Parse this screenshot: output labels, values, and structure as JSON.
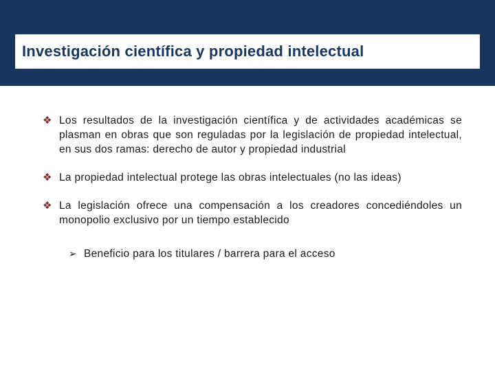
{
  "colors": {
    "band": "#17375e",
    "title": "#17375e",
    "bullet_glyph": "#7d2a2a",
    "text": "#1a1a1a",
    "background": "#ffffff"
  },
  "typography": {
    "title_fontsize": 22,
    "body_fontsize": 15.5,
    "line_height": 21,
    "font_family": "Verdana"
  },
  "title": "Investigación científica y propiedad intelectual",
  "bullets": [
    {
      "glyph": "❖",
      "text": "Los resultados de la investigación científica y de actividades académicas se plasman en obras que son reguladas por la legislación de propiedad intelectual, en sus dos ramas: derecho de autor y propiedad industrial"
    },
    {
      "glyph": "❖",
      "text": "La propiedad intelectual protege las obras intelectuales (no las ideas)"
    },
    {
      "glyph": "❖",
      "text": "La legislación ofrece una compensación a los creadores concediéndoles un monopolio exclusivo por un tiempo establecido"
    }
  ],
  "sub_bullet": {
    "glyph": "➢",
    "text": "Beneficio para los titulares / barrera para el acceso"
  }
}
